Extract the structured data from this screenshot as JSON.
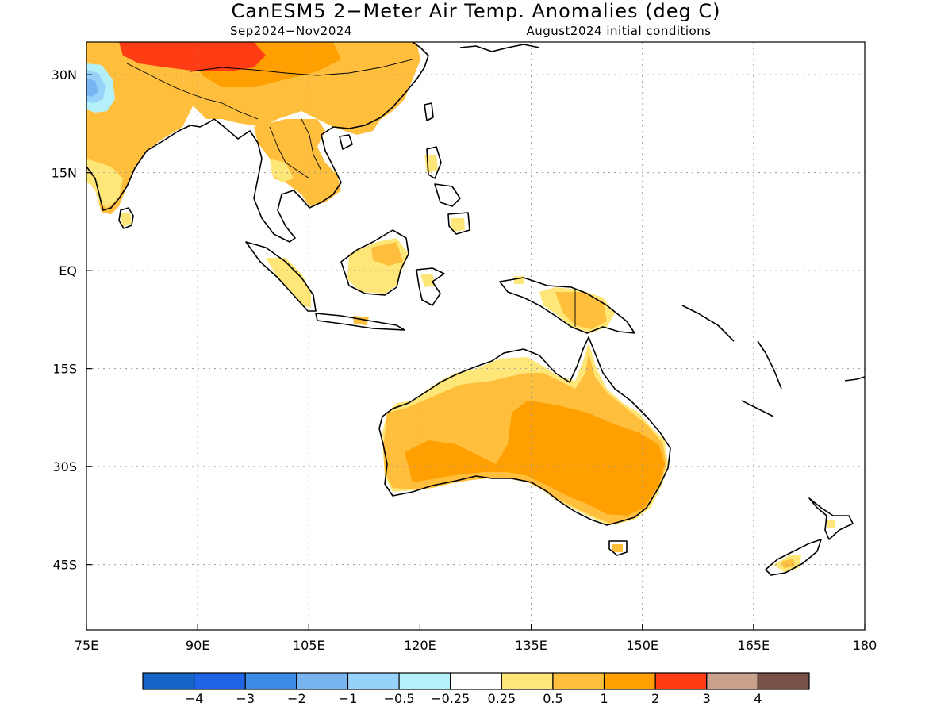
{
  "title": "CanESM5 2−Meter Air Temp. Anomalies (deg C)",
  "subtitle_left": "Sep2024−Nov2024",
  "subtitle_right": "August2024 initial conditions",
  "map": {
    "lon_range": [
      75,
      180
    ],
    "lat_range": [
      -55,
      35
    ],
    "x_ticks": [
      {
        "lon": 75,
        "label": "75E"
      },
      {
        "lon": 90,
        "label": "90E"
      },
      {
        "lon": 105,
        "label": "105E"
      },
      {
        "lon": 120,
        "label": "120E"
      },
      {
        "lon": 135,
        "label": "135E"
      },
      {
        "lon": 150,
        "label": "150E"
      },
      {
        "lon": 165,
        "label": "165E"
      },
      {
        "lon": 180,
        "label": "180"
      }
    ],
    "y_ticks": [
      {
        "lat": 30,
        "label": "30N"
      },
      {
        "lat": 15,
        "label": "15N"
      },
      {
        "lat": 0,
        "label": "EQ"
      },
      {
        "lat": -15,
        "label": "15S"
      },
      {
        "lat": -30,
        "label": "30S"
      },
      {
        "lat": -45,
        "label": "45S"
      }
    ],
    "grid": "dotted"
  },
  "colorbar": {
    "colors": [
      "#1565c8",
      "#1e64e6",
      "#3c8ce6",
      "#78b4f0",
      "#96d2fa",
      "#b4f0fa",
      "#ffffff",
      "#ffe678",
      "#ffbe3c",
      "#ffa000",
      "#ff3c14",
      "#c8a08c",
      "#785046"
    ],
    "labels": [
      "−4",
      "−3",
      "−2",
      "−1",
      "−0.5",
      "−0.25",
      "0.25",
      "0.5",
      "1",
      "2",
      "3",
      "4"
    ]
  },
  "anomaly_colors": {
    "light": "#ffe678",
    "medium": "#ffbe3c",
    "strong": "#ffa000",
    "very_strong": "#ff3c14",
    "cool_light": "#b4f0fa",
    "cool": "#96d2fa",
    "cooler": "#78b4f0"
  }
}
